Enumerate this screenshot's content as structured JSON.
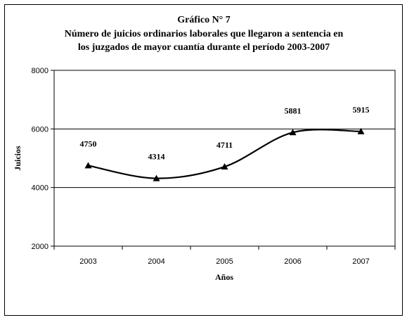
{
  "chart_data": {
    "type": "line",
    "title_lines": [
      "Gráfico N° 7",
      "Número de juicios ordinarios laborales que llegaron a sentencia en",
      "los juzgados de mayor cuantía durante el período 2003-2007"
    ],
    "xlabel": "Años",
    "ylabel": "Juicios",
    "categories": [
      "2003",
      "2004",
      "2005",
      "2006",
      "2007"
    ],
    "series": [
      {
        "values": [
          4750,
          4314,
          4711,
          5881,
          5915
        ],
        "color": "#000000"
      }
    ],
    "ylim": [
      2000,
      8000
    ],
    "yticks": [
      "2000",
      "4000",
      "6000",
      "8000"
    ],
    "grid": true,
    "legend": "none",
    "marker": "triangle",
    "smooth": true
  }
}
